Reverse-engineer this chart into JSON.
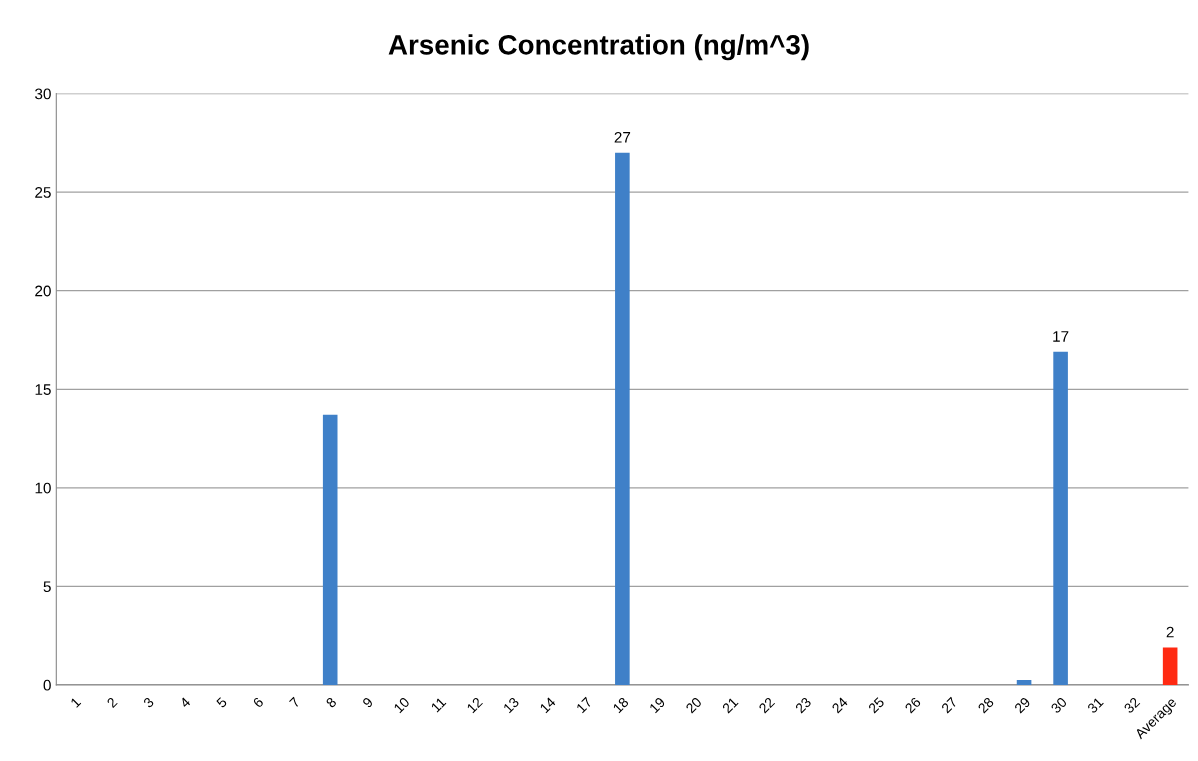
{
  "chart_data": {
    "type": "bar",
    "title": "Arsenic Concentration (ng/m^3)",
    "categories": [
      "1",
      "2",
      "3",
      "4",
      "5",
      "6",
      "7",
      "8",
      "9",
      "10",
      "11",
      "12",
      "13",
      "14",
      "17",
      "18",
      "19",
      "20",
      "21",
      "22",
      "23",
      "24",
      "25",
      "26",
      "27",
      "28",
      "29",
      "30",
      "31",
      "32",
      "Average"
    ],
    "values": [
      null,
      null,
      null,
      null,
      null,
      null,
      null,
      13.7,
      null,
      null,
      null,
      null,
      null,
      null,
      null,
      27,
      null,
      null,
      null,
      null,
      null,
      null,
      null,
      null,
      null,
      null,
      0.25,
      16.9,
      null,
      null,
      1.9
    ],
    "colors": [
      "#3f80c8",
      "#3f80c8",
      "#3f80c8",
      "#3f80c8",
      "#3f80c8",
      "#3f80c8",
      "#3f80c8",
      "#3f80c8",
      "#3f80c8",
      "#3f80c8",
      "#3f80c8",
      "#3f80c8",
      "#3f80c8",
      "#3f80c8",
      "#3f80c8",
      "#3f80c8",
      "#3f80c8",
      "#3f80c8",
      "#3f80c8",
      "#3f80c8",
      "#3f80c8",
      "#3f80c8",
      "#3f80c8",
      "#3f80c8",
      "#3f80c8",
      "#3f80c8",
      "#3f80c8",
      "#3f80c8",
      "#3f80c8",
      "#3f80c8",
      "#ff2a12"
    ],
    "value_labels": [
      null,
      null,
      null,
      null,
      null,
      null,
      null,
      null,
      null,
      null,
      null,
      null,
      null,
      null,
      null,
      "27",
      null,
      null,
      null,
      null,
      null,
      null,
      null,
      null,
      null,
      null,
      null,
      "17",
      null,
      null,
      "2"
    ],
    "ylim": [
      0,
      30
    ],
    "yticks": [
      0,
      5,
      10,
      15,
      20,
      25,
      30
    ],
    "grid": "y",
    "legend": false
  }
}
